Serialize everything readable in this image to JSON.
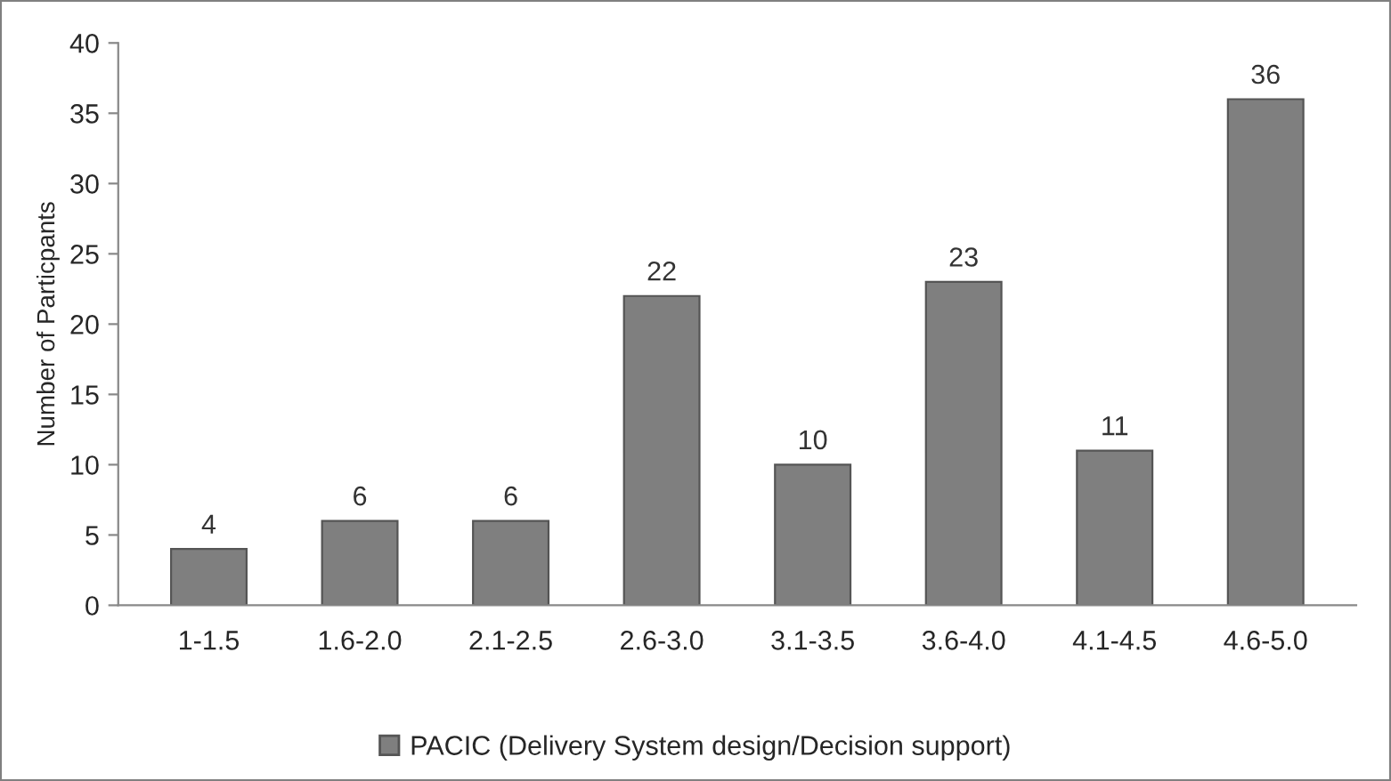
{
  "chart_data": {
    "type": "bar",
    "categories": [
      "1-1.5",
      "1.6-2.0",
      "2.1-2.5",
      "2.6-3.0",
      "3.1-3.5",
      "3.6-4.0",
      "4.1-4.5",
      "4.6-5.0"
    ],
    "series": [
      {
        "name": "PACIC (Delivery System design/Decision support)",
        "color": "#7f7f7f",
        "values": [
          4,
          6,
          6,
          22,
          10,
          23,
          11,
          36
        ]
      }
    ],
    "ylabel": "Number of Particpants",
    "ylim": [
      0,
      40
    ],
    "yticks": [
      0,
      5,
      10,
      15,
      20,
      25,
      30,
      35,
      40
    ],
    "data_labels": true,
    "grid": false,
    "legend": "bottom"
  }
}
